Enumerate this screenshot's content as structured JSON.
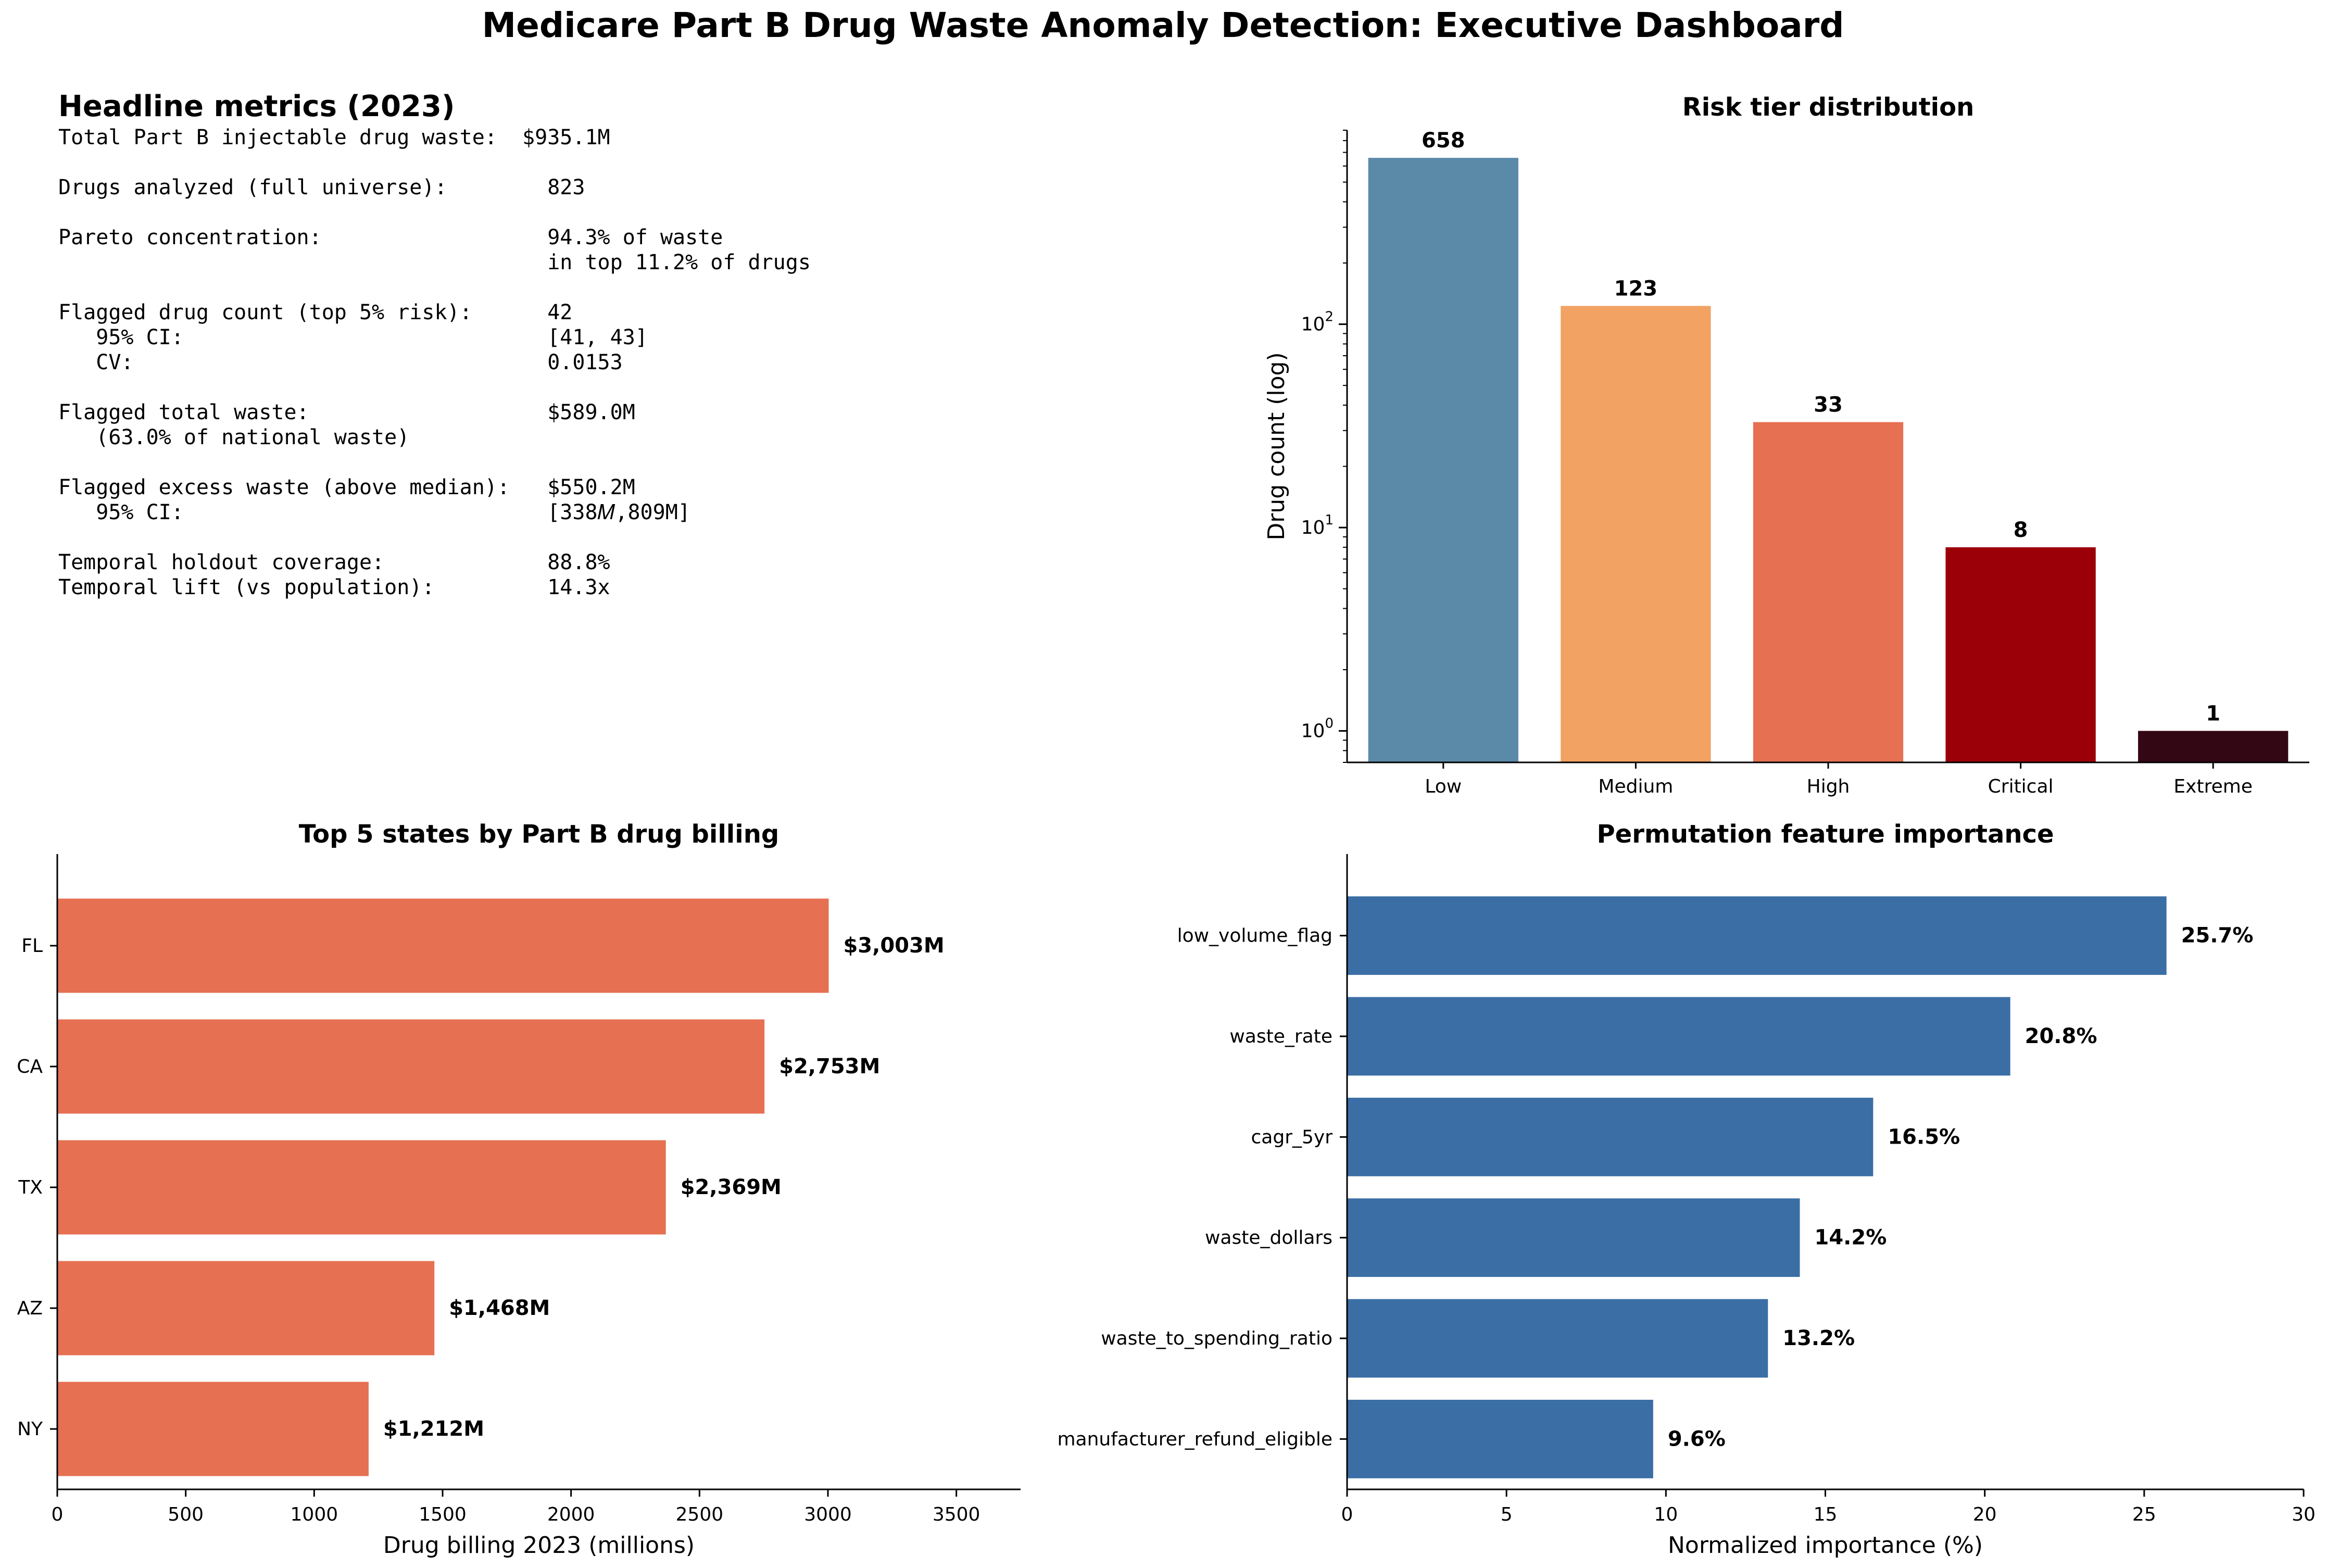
{
  "title": "Medicare Part B Drug Waste Anomaly Detection: Executive Dashboard",
  "metrics": {
    "heading": "Headline metrics (2023)",
    "lines": [
      "Total Part B injectable drug waste:  $935.1M",
      "",
      "Drugs analyzed (full universe):        823",
      "",
      "Pareto concentration:                  94.3% of waste",
      "                                       in top 11.2% of drugs",
      "",
      "Flagged drug count (top 5% risk):      42",
      "   95% CI:                             [41, 43]",
      "   CV:                                 0.0153",
      "",
      "Flagged total waste:                   $589.0M",
      "   (63.0% of national waste)",
      "",
      "Flagged excess waste (above median):   $550.2M",
      "   95% CI:                             [338𝑀,809M]",
      "",
      "Temporal holdout coverage:             88.8%",
      "Temporal lift (vs population):         14.3x"
    ]
  },
  "chart_data": [
    {
      "type": "bar",
      "title": "Risk tier distribution",
      "ylabel": "Drug count (log)",
      "xlabel": "",
      "yscale": "log",
      "ylim": [
        0.7,
        900
      ],
      "categories": [
        "Low",
        "Medium",
        "High",
        "Critical",
        "Extreme"
      ],
      "values": [
        658,
        123,
        33,
        8,
        1
      ],
      "value_labels": [
        "658",
        "123",
        "33",
        "8",
        "1"
      ],
      "yticks": [
        {
          "value": 1,
          "base": "10",
          "exp": "0"
        },
        {
          "value": 10,
          "base": "10",
          "exp": "1"
        },
        {
          "value": 100,
          "base": "10",
          "exp": "2"
        }
      ],
      "colors": [
        "#5b8aa8",
        "#f2a262",
        "#e67052",
        "#9b0009",
        "#330713"
      ]
    },
    {
      "type": "bar",
      "orientation": "horizontal",
      "title": "Top 5 states by Part B drug billing",
      "xlabel": "Drug billing 2023 (millions)",
      "ylabel": "",
      "xlim": [
        0,
        3750
      ],
      "categories": [
        "FL",
        "CA",
        "TX",
        "AZ",
        "NY"
      ],
      "values": [
        3003,
        2753,
        2369,
        1468,
        1212
      ],
      "value_labels": [
        "$3,003M",
        "$2,753M",
        "$2,369M",
        "$1,468M",
        "$1,212M"
      ],
      "xticks": [
        "0",
        "500",
        "1000",
        "1500",
        "2000",
        "2500",
        "3000",
        "3500"
      ],
      "color": "#e67052"
    },
    {
      "type": "bar",
      "orientation": "horizontal",
      "title": "Permutation feature importance",
      "xlabel": "Normalized importance (%)",
      "ylabel": "",
      "xlim": [
        0,
        30
      ],
      "categories": [
        "low_volume_flag",
        "waste_rate",
        "cagr_5yr",
        "waste_dollars",
        "waste_to_spending_ratio",
        "manufacturer_refund_eligible"
      ],
      "values": [
        25.7,
        20.8,
        16.5,
        14.2,
        13.2,
        9.6
      ],
      "value_labels": [
        "25.7%",
        "20.8%",
        "16.5%",
        "14.2%",
        "13.2%",
        "9.6%"
      ],
      "xticks": [
        "0",
        "5",
        "10",
        "15",
        "20",
        "25",
        "30"
      ],
      "color": "#3a6ea5"
    }
  ]
}
